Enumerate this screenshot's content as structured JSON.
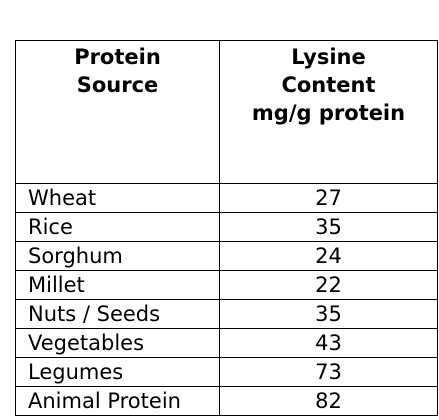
{
  "table": {
    "header": [
      [
        "Protein",
        "Source"
      ],
      [
        "Lysine",
        "Content",
        "mg/g protein"
      ]
    ],
    "rows": [
      [
        "Wheat",
        27
      ],
      [
        "Rice",
        35
      ],
      [
        "Sorghum",
        24
      ],
      [
        "Millet",
        22
      ],
      [
        "Nuts / Seeds",
        35
      ],
      [
        "Vegetables",
        43
      ],
      [
        "Legumes",
        73
      ],
      [
        "Animal Protein",
        82
      ]
    ]
  }
}
